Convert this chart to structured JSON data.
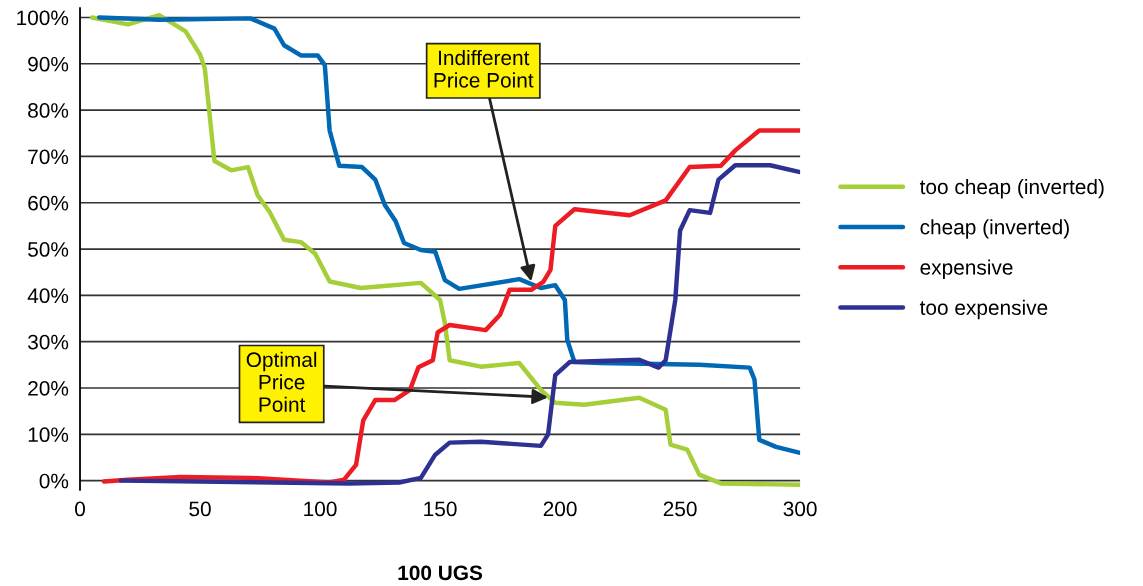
{
  "chart_data": {
    "type": "line",
    "xlabel": "100 UGS",
    "xlim": [
      0,
      300
    ],
    "xticks": [
      0,
      50,
      100,
      150,
      200,
      250,
      300
    ],
    "ylim": [
      -2,
      102
    ],
    "yticks": [
      {
        "value": 0,
        "label": "0%"
      },
      {
        "value": 10,
        "label": "10%"
      },
      {
        "value": 20,
        "label": "20%"
      },
      {
        "value": 30,
        "label": "30%"
      },
      {
        "value": 40,
        "label": "40%"
      },
      {
        "value": 50,
        "label": "50%"
      },
      {
        "value": 60,
        "label": "60%"
      },
      {
        "value": 70,
        "label": "70%"
      },
      {
        "value": 80,
        "label": "80%"
      },
      {
        "value": 90,
        "label": "90%"
      },
      {
        "value": 100,
        "label": "100%"
      }
    ],
    "grid": "y",
    "legend": "right",
    "marker": "none",
    "line_style": "solid",
    "series": [
      {
        "name": "too cheap (inverted)",
        "color": "#a6ce39",
        "x": [
          5,
          20,
          33,
          44,
          50,
          52,
          56,
          63,
          70,
          74,
          79,
          85,
          92,
          98,
          104,
          117,
          142,
          150,
          152,
          154,
          167,
          183,
          192,
          198,
          210,
          233,
          244,
          246,
          253,
          258,
          267,
          300
        ],
        "values": [
          100,
          98.5,
          100.5,
          97,
          92,
          89,
          69,
          67,
          67.7,
          61.6,
          58,
          52,
          51.5,
          49,
          43,
          41.6,
          42.7,
          39,
          34,
          26,
          24.6,
          25.4,
          19.6,
          16.8,
          16.4,
          17.9,
          15.3,
          7.8,
          6.7,
          1.3,
          -0.6,
          -0.9
        ]
      },
      {
        "name": "cheap (inverted)",
        "color": "#0068b4",
        "x": [
          8,
          33,
          71,
          81,
          85,
          92,
          99,
          102,
          104,
          108,
          117.5,
          123,
          127,
          131.5,
          135,
          142,
          148,
          152,
          158,
          183,
          192,
          198,
          202,
          203,
          206,
          217,
          258,
          279,
          281,
          283,
          290,
          300
        ],
        "values": [
          100,
          99.5,
          99.8,
          97.6,
          94,
          91.8,
          91.8,
          89.7,
          75.6,
          68,
          67.7,
          65,
          59.5,
          56,
          51.3,
          49.8,
          49.4,
          43.3,
          41.4,
          43.5,
          41.6,
          42.2,
          39,
          30.4,
          25.6,
          25.4,
          25,
          24.4,
          21.8,
          8.8,
          7.3,
          6
        ]
      },
      {
        "name": "expensive",
        "color": "#ed1c24",
        "x": [
          10,
          20,
          42,
          71,
          104,
          110,
          115,
          118,
          123,
          131,
          137.5,
          141,
          147,
          149,
          154,
          169,
          175,
          179,
          188,
          193,
          196,
          198,
          206,
          229,
          244,
          254,
          267,
          273,
          283,
          300
        ],
        "values": [
          -0.2,
          0.2,
          0.8,
          0.6,
          -0.4,
          0.2,
          3.4,
          13,
          17.4,
          17.4,
          19.6,
          24.5,
          26,
          32,
          33.6,
          32.5,
          35.8,
          41.2,
          41.2,
          42.9,
          45.5,
          55,
          58.6,
          57.3,
          60.5,
          67.7,
          68,
          71.3,
          75.6,
          75.6
        ]
      },
      {
        "name": "too expensive",
        "color": "#2e3192",
        "x": [
          17,
          50,
          112,
          133,
          142,
          148,
          154,
          167,
          192,
          195,
          198,
          204,
          233,
          241,
          244,
          248,
          250,
          254,
          262.5,
          266,
          273,
          287.5,
          300
        ],
        "values": [
          0,
          -0.2,
          -0.6,
          -0.4,
          0.6,
          5.6,
          8.2,
          8.4,
          7.5,
          10,
          22.8,
          25.6,
          26.1,
          24.4,
          26,
          39,
          54,
          58.4,
          57.8,
          65,
          68.1,
          68.1,
          66.6
        ]
      }
    ],
    "annotations": [
      {
        "text": "Indifferent\nPrice Point",
        "x": 188,
        "y": 43
      },
      {
        "text": "Optimal\nPrice\nPoint",
        "x": 195,
        "y": 18
      }
    ]
  }
}
